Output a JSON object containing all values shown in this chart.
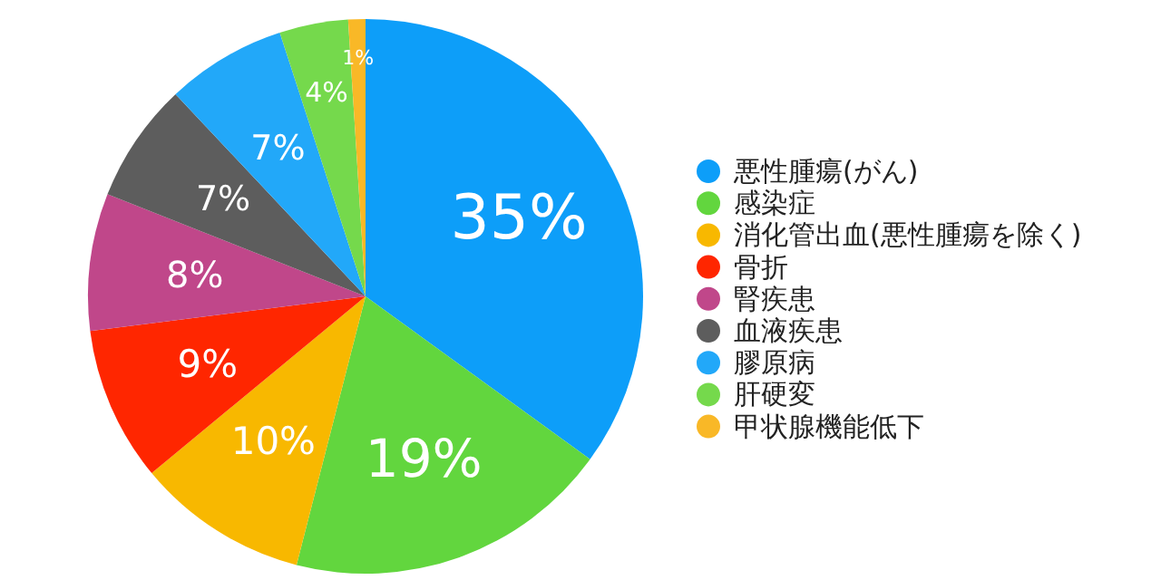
{
  "chart_data": {
    "type": "pie",
    "categories": [
      "悪性腫瘍(がん)",
      "感染症",
      "消化管出血(悪性腫瘍を除く)",
      "骨折",
      "腎疾患",
      "血液疾患",
      "膠原病",
      "肝硬変",
      "甲状腺機能低下"
    ],
    "values": [
      35,
      19,
      10,
      9,
      8,
      7,
      7,
      4,
      1
    ],
    "colors": [
      "#0d9ef9",
      "#62d63e",
      "#f8b800",
      "#ff2600",
      "#c0478a",
      "#5d5d5d",
      "#22a8f9",
      "#75d94c",
      "#f9b827"
    ],
    "value_labels": [
      "35%",
      "19%",
      "10%",
      "9%",
      "8%",
      "7%",
      "7%",
      "4%",
      "1%"
    ],
    "legend": "right"
  }
}
